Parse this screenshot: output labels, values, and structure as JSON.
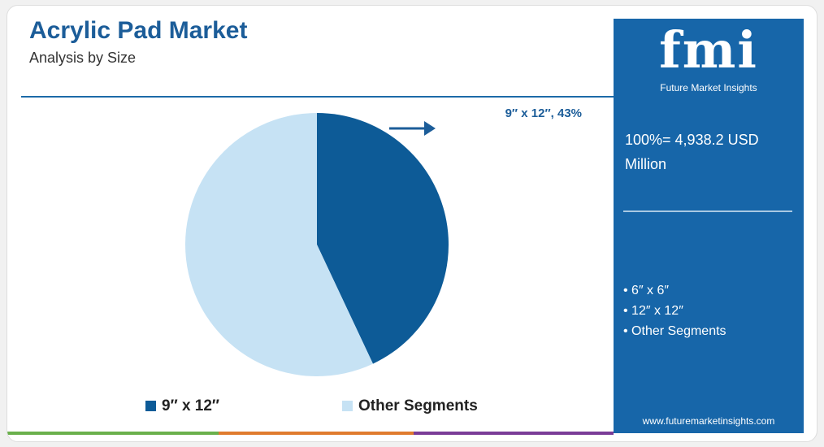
{
  "chart_data": {
    "type": "pie",
    "title": "Acrylic Pad Market",
    "subtitle": "Analysis by Size",
    "categories": [
      "9″ x 12″",
      "Other Segments"
    ],
    "values": [
      43,
      57
    ],
    "value_labels": [
      "9″ x 12″, 43%",
      null
    ],
    "colors": [
      "#0d5b97",
      "#c6e2f4"
    ]
  },
  "side_panel": {
    "logo": "fmi",
    "brand": "Future Market Insights",
    "total": "100%= 4,938.2 USD Million",
    "segments": [
      "6″ x 6″",
      "12″ x 12″",
      "Other Segments"
    ],
    "url": "www.futuremarketinsights.com"
  }
}
